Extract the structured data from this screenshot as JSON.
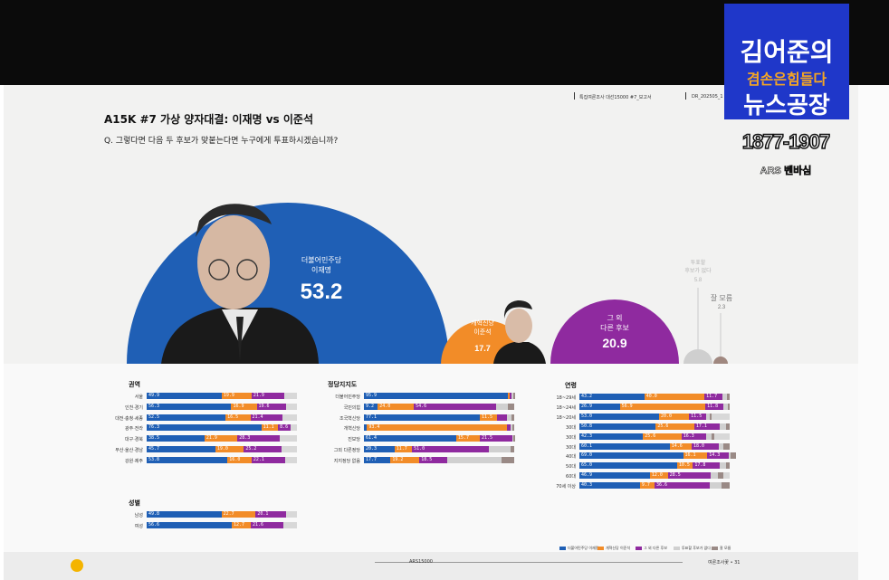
{
  "header_meta": {
    "line1": "특집여론조사 대선15000 #7_보고서",
    "line2": "DR_202505_1"
  },
  "title": "A15K #7  가상  양자대결: 이재명 vs 이준석",
  "question": "Q. 그렇다면 다음 두 후보가 맞붙는다면 누구에게 투표하시겠습니까?",
  "overlay": {
    "line1": "김어준의",
    "line2": "겸손은힘들다",
    "line3": "뉴스공장",
    "date": "1877-1907",
    "subtitle": "ARS 벤바심"
  },
  "colors": {
    "lee": "#1f5fb5",
    "lee_jun": "#f28c28",
    "other": "#8f2a9f",
    "undecided": "#d0d0d0",
    "dontknow": "#9a8a86"
  },
  "chart_data": [
    {
      "type": "bubble",
      "series": [
        {
          "name": "더불어민주당\n이재명",
          "value": 53.2
        },
        {
          "name": "개혁신당\n이준석",
          "value": 17.7
        },
        {
          "name": "그 외\n다른 후보",
          "value": 20.9
        },
        {
          "name": "투표할\n후보가 없다",
          "value": 5.8
        },
        {
          "name": "잘 모름",
          "value": 2.3
        }
      ]
    },
    {
      "type": "stacked-bar",
      "title": "권역",
      "categories": [
        "서울",
        "인천·경기",
        "대전·충청·세종",
        "광주·전라",
        "대구·경북",
        "부산·울산·경남",
        "강원·제주"
      ],
      "series": [
        {
          "name": "더불어민주당 이재명",
          "values": [
            49.9,
            56.3,
            52.5,
            76.3,
            38.5,
            45.7,
            53.8
          ]
        },
        {
          "name": "개혁신당 이준석",
          "values": [
            19.9,
            16.9,
            16.5,
            11.1,
            21.9,
            19.0,
            16.0
          ]
        },
        {
          "name": "그 외 다른 후보",
          "values": [
            21.9,
            19.6,
            21.4,
            8.6,
            28.3,
            25.2,
            22.1
          ]
        }
      ]
    },
    {
      "type": "stacked-bar",
      "title": "성별",
      "categories": [
        "남성",
        "여성"
      ],
      "series": [
        {
          "name": "더불어민주당 이재명",
          "values": [
            49.8,
            56.6
          ]
        },
        {
          "name": "개혁신당 이준석",
          "values": [
            22.7,
            12.7
          ]
        },
        {
          "name": "그 외 다른 후보",
          "values": [
            20.1,
            21.6
          ]
        }
      ]
    },
    {
      "type": "stacked-bar",
      "title": "정당지지도",
      "categories": [
        "더불어민주당",
        "국민의힘",
        "조국혁신당",
        "개혁신당",
        "진보당",
        "그외 다른정당",
        "지지정당 없음"
      ],
      "series": [
        {
          "name": "더불어민주당 이재명",
          "values": [
            95.9,
            9.2,
            77.1,
            2.0,
            61.4,
            20.3,
            17.7
          ]
        },
        {
          "name": "개혁신당 이준석",
          "values": [
            1.0,
            24.0,
            11.5,
            93.4,
            15.7,
            11.7,
            19.2
          ]
        },
        {
          "name": "그 외 다른 후보",
          "values": [
            1.5,
            54.6,
            6.4,
            2.0,
            21.5,
            51.0,
            18.5
          ]
        },
        {
          "name": "투표할 후보가 없다",
          "values": [
            0.8,
            8.2,
            3.0,
            1.2,
            0.8,
            14.3,
            36.0
          ]
        },
        {
          "name": "잘 모름",
          "values": [
            0.8,
            4.0,
            2.0,
            1.4,
            0.6,
            2.7,
            8.6
          ]
        }
      ]
    },
    {
      "type": "stacked-bar",
      "title": "연령",
      "categories": [
        "18~29세",
        "18~24세",
        "18~20세",
        "30대",
        "30대",
        "30대",
        "40대",
        "50대",
        "60대",
        "70세 이상"
      ],
      "series": [
        {
          "name": "더불어민주당 이재명",
          "values": [
            43.2,
            26.9,
            53.0,
            50.8,
            42.3,
            60.1,
            69.0,
            65.0,
            46.9,
            40.3
          ]
        },
        {
          "name": "개혁신당 이준석",
          "values": [
            40.0,
            56.9,
            20.0,
            25.6,
            25.6,
            14.6,
            16.1,
            10.5,
            12.0,
            9.7
          ]
        },
        {
          "name": "그 외 다른 후보",
          "values": [
            11.7,
            11.8,
            11.5,
            17.1,
            16.3,
            18.0,
            14.3,
            17.8,
            28.5,
            36.6
          ]
        },
        {
          "name": "투표할 후보가 없다",
          "values": [
            3.0,
            3.0,
            2.5,
            4.0,
            3.5,
            2.9,
            1.5,
            4.5,
            5.0,
            8.0
          ]
        },
        {
          "name": "잘 모름",
          "values": [
            2.1,
            1.4,
            1.0,
            2.5,
            2.3,
            4.4,
            3.1,
            2.2,
            3.6,
            5.4
          ]
        }
      ]
    }
  ],
  "legend": [
    "더불어민주당 이재명",
    "개혁신당 이준석",
    "그 외 다른 후보",
    "투표할 후보가 없다",
    "잘 모름"
  ],
  "footer": {
    "center": "ARS15000",
    "right": "여론조사꽃 • 31"
  }
}
